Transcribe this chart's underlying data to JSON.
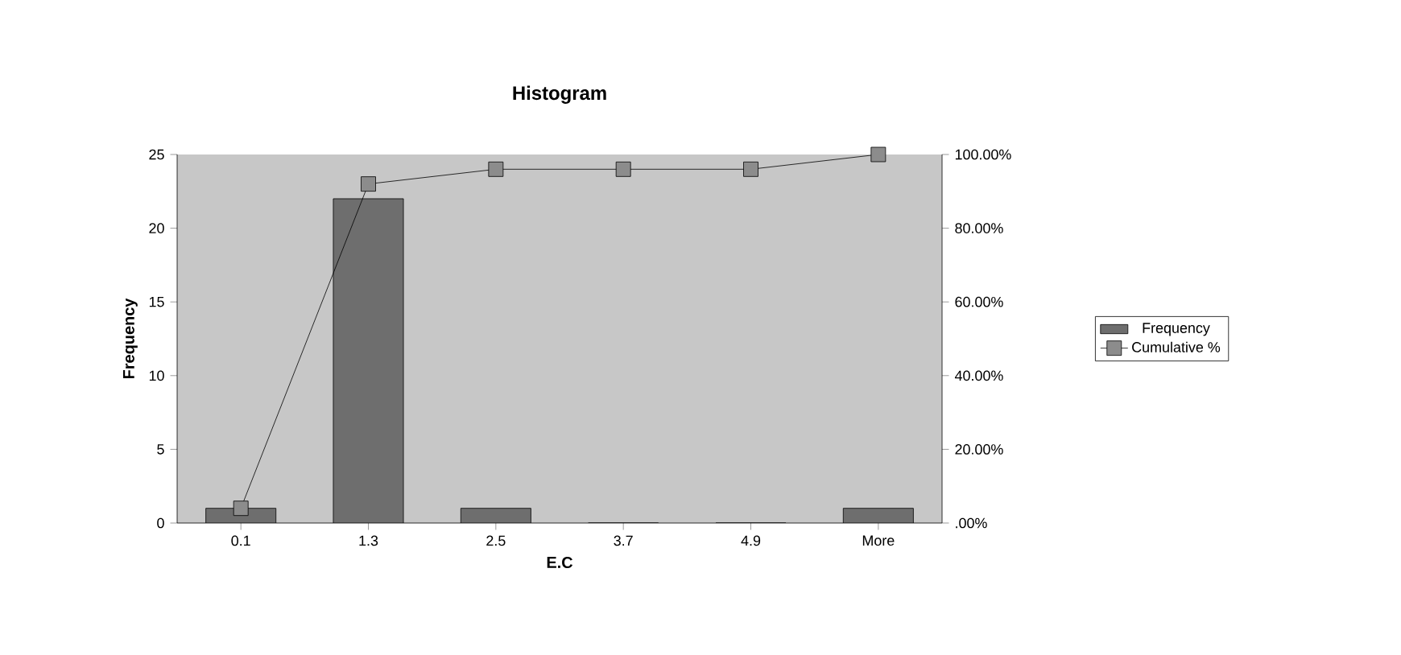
{
  "chart_data": {
    "type": "bar",
    "title": "Histogram",
    "xlabel": "E.C",
    "ylabel": "Frequency",
    "categories": [
      "0.1",
      "1.3",
      "2.5",
      "3.7",
      "4.9",
      "More"
    ],
    "series": [
      {
        "name": "Frequency",
        "color": "#6e6e6e",
        "values": [
          1,
          22,
          1,
          0,
          0,
          1
        ]
      },
      {
        "name": "Cumulative %",
        "type": "line",
        "axis": "y2",
        "color": "#000000",
        "values": [
          4,
          92,
          96,
          96,
          96,
          100
        ]
      }
    ],
    "ylim": [
      0,
      25
    ],
    "yticks": [
      0,
      5,
      10,
      15,
      20,
      25
    ],
    "y2lim": [
      0,
      100
    ],
    "y2ticks": [
      {
        "value": 0,
        "label": ".00%"
      },
      {
        "value": 20,
        "label": "20.00%"
      },
      {
        "value": 40,
        "label": "40.00%"
      },
      {
        "value": 60,
        "label": "60.00%"
      },
      {
        "value": 80,
        "label": "80.00%"
      },
      {
        "value": 100,
        "label": "100.00%"
      }
    ],
    "marker": "square",
    "legend": "right"
  }
}
